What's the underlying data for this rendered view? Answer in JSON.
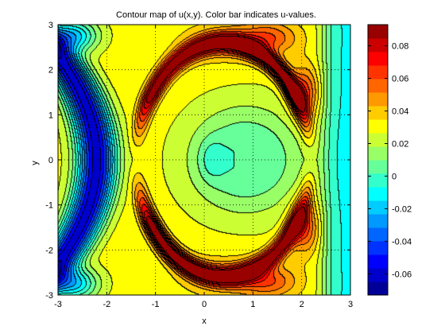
{
  "chart_data": {
    "type": "heatmap",
    "subtype": "filled-contour",
    "title": "Contour map of u(x,y).  Color bar indicates u-values.",
    "xlabel": "x",
    "ylabel": "y",
    "xlim": [
      -3,
      3
    ],
    "ylim": [
      -3,
      3
    ],
    "x_ticks": [
      -3,
      -2,
      -1,
      0,
      1,
      2,
      3
    ],
    "y_ticks": [
      -3,
      -2,
      -1,
      0,
      1,
      2,
      3
    ],
    "grid": "on",
    "colormap": "jet",
    "colorbar": {
      "range": [
        -0.073,
        0.093
      ],
      "ticks": [
        -0.06,
        -0.04,
        -0.02,
        0,
        0.02,
        0.04,
        0.06,
        0.08
      ],
      "tick_labels": [
        "-0.06",
        "-0.04",
        "-0.02",
        "0",
        "0.02",
        "0.04",
        "0.06",
        "0.08"
      ],
      "levels": 20
    },
    "features": [
      {
        "kind": "min",
        "x": -2.75,
        "y": 2.75,
        "u": -0.07
      },
      {
        "kind": "min",
        "x": -2.75,
        "y": -2.75,
        "u": -0.07
      },
      {
        "kind": "max",
        "x": 2.05,
        "y": 1.5,
        "u": 0.09
      },
      {
        "kind": "max",
        "x": 2.05,
        "y": -1.5,
        "u": 0.09
      },
      {
        "kind": "local-min",
        "x": 0.15,
        "y": 0.0,
        "u": -0.012
      }
    ]
  }
}
